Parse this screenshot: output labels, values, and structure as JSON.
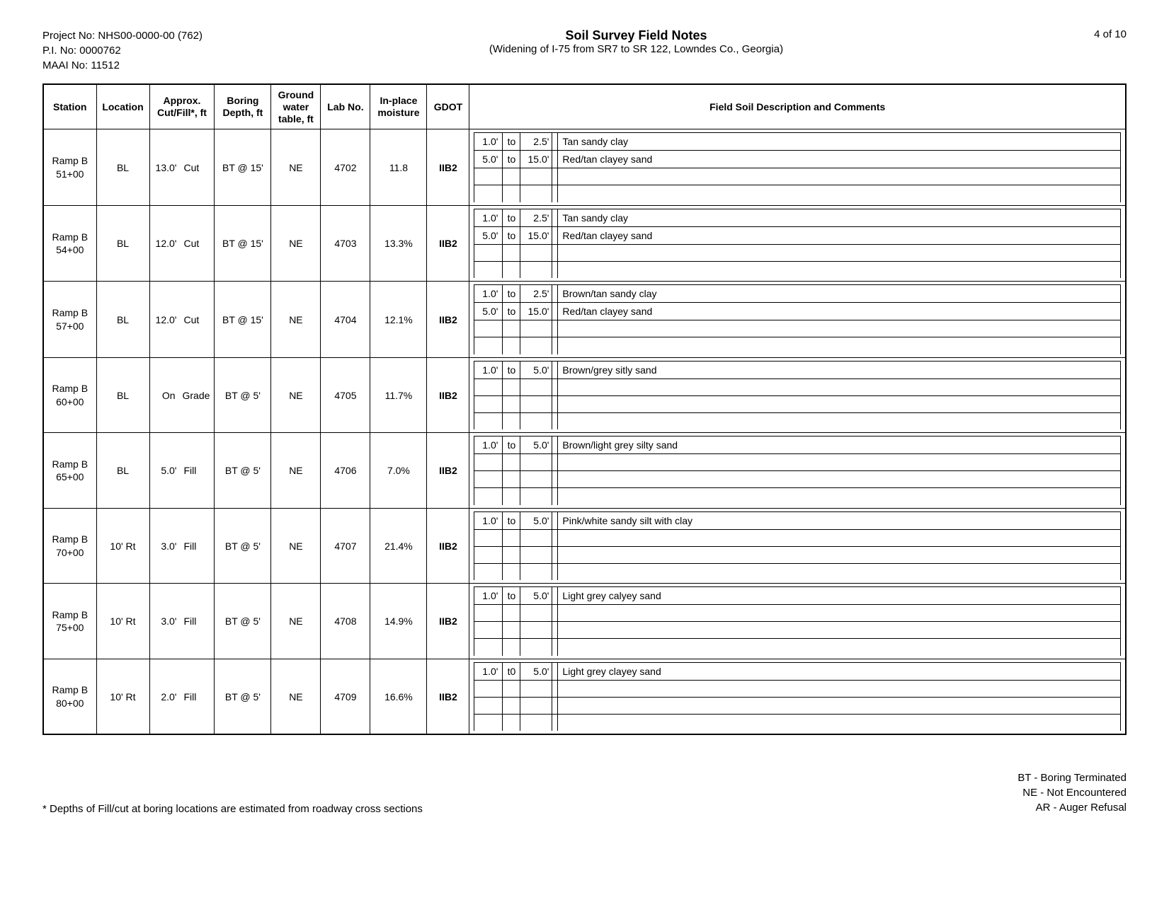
{
  "header": {
    "project_no_label": "Project No:",
    "project_no": "NHS00-0000-00 (762)",
    "pi_no_label": "P.I. No:",
    "pi_no": "0000762",
    "maai_no_label": "MAAI No:",
    "maai_no": "11512",
    "title": "Soil Survey Field Notes",
    "subtitle": "(Widening of I-75 from SR7 to SR 122, Lowndes Co., Georgia)",
    "page": "4 of 10"
  },
  "columns": {
    "station": "Station",
    "location": "Location",
    "cutfill": "Approx. Cut/Fill*, ft",
    "boring": "Boring Depth, ft",
    "gwt": "Ground water table, ft",
    "lab": "Lab No.",
    "moisture": "In-place moisture",
    "gdot": "GDOT",
    "desc": "Field Soil Description and Comments"
  },
  "rows": [
    {
      "station": "Ramp B 51+00",
      "location": "BL",
      "cut_val": "13.0'",
      "cut_type": "Cut",
      "boring": "BT @ 15'",
      "gwt": "NE",
      "lab": "4702",
      "moisture": "11.8",
      "gdot": "IIB2",
      "layers": [
        {
          "from": "1.0'",
          "tolbl": "to",
          "to": "2.5'",
          "text": "Tan sandy clay"
        },
        {
          "from": "5.0'",
          "tolbl": "to",
          "to": "15.0'",
          "text": "Red/tan clayey sand"
        },
        {
          "from": "",
          "tolbl": "",
          "to": "",
          "text": ""
        },
        {
          "from": "",
          "tolbl": "",
          "to": "",
          "text": ""
        }
      ]
    },
    {
      "station": "Ramp B 54+00",
      "location": "BL",
      "cut_val": "12.0'",
      "cut_type": "Cut",
      "boring": "BT @ 15'",
      "gwt": "NE",
      "lab": "4703",
      "moisture": "13.3%",
      "gdot": "IIB2",
      "layers": [
        {
          "from": "1.0'",
          "tolbl": "to",
          "to": "2.5'",
          "text": "Tan sandy clay"
        },
        {
          "from": "5.0'",
          "tolbl": "to",
          "to": "15.0'",
          "text": "Red/tan clayey sand"
        },
        {
          "from": "",
          "tolbl": "",
          "to": "",
          "text": ""
        },
        {
          "from": "",
          "tolbl": "",
          "to": "",
          "text": ""
        }
      ]
    },
    {
      "station": "Ramp B 57+00",
      "location": "BL",
      "cut_val": "12.0'",
      "cut_type": "Cut",
      "boring": "BT @ 15'",
      "gwt": "NE",
      "lab": "4704",
      "moisture": "12.1%",
      "gdot": "IIB2",
      "layers": [
        {
          "from": "1.0'",
          "tolbl": "to",
          "to": "2.5'",
          "text": "Brown/tan sandy clay"
        },
        {
          "from": "5.0'",
          "tolbl": "to",
          "to": "15.0'",
          "text": "Red/tan clayey sand"
        },
        {
          "from": "",
          "tolbl": "",
          "to": "",
          "text": ""
        },
        {
          "from": "",
          "tolbl": "",
          "to": "",
          "text": ""
        }
      ]
    },
    {
      "station": "Ramp B 60+00",
      "location": "BL",
      "cut_val": "On",
      "cut_type": "Grade",
      "boring": "BT @ 5'",
      "gwt": "NE",
      "lab": "4705",
      "moisture": "11.7%",
      "gdot": "IIB2",
      "layers": [
        {
          "from": "1.0'",
          "tolbl": "to",
          "to": "5.0'",
          "text": "Brown/grey sitly sand"
        },
        {
          "from": "",
          "tolbl": "",
          "to": "",
          "text": ""
        },
        {
          "from": "",
          "tolbl": "",
          "to": "",
          "text": ""
        },
        {
          "from": "",
          "tolbl": "",
          "to": "",
          "text": ""
        }
      ]
    },
    {
      "station": "Ramp B 65+00",
      "location": "BL",
      "cut_val": "5.0'",
      "cut_type": "Fill",
      "boring": "BT @ 5'",
      "gwt": "NE",
      "lab": "4706",
      "moisture": "7.0%",
      "gdot": "IIB2",
      "layers": [
        {
          "from": "1.0'",
          "tolbl": "to",
          "to": "5.0'",
          "text": "Brown/light grey silty sand"
        },
        {
          "from": "",
          "tolbl": "",
          "to": "",
          "text": ""
        },
        {
          "from": "",
          "tolbl": "",
          "to": "",
          "text": ""
        },
        {
          "from": "",
          "tolbl": "",
          "to": "",
          "text": ""
        }
      ]
    },
    {
      "station": "Ramp B 70+00",
      "location": "10' Rt",
      "cut_val": "3.0'",
      "cut_type": "Fill",
      "boring": "BT @ 5'",
      "gwt": "NE",
      "lab": "4707",
      "moisture": "21.4%",
      "gdot": "IIB2",
      "layers": [
        {
          "from": "1.0'",
          "tolbl": "to",
          "to": "5.0'",
          "text": "Pink/white sandy silt with clay"
        },
        {
          "from": "",
          "tolbl": "",
          "to": "",
          "text": ""
        },
        {
          "from": "",
          "tolbl": "",
          "to": "",
          "text": ""
        },
        {
          "from": "",
          "tolbl": "",
          "to": "",
          "text": ""
        }
      ]
    },
    {
      "station": "Ramp B 75+00",
      "location": "10' Rt",
      "cut_val": "3.0'",
      "cut_type": "Fill",
      "boring": "BT @ 5'",
      "gwt": "NE",
      "lab": "4708",
      "moisture": "14.9%",
      "gdot": "IIB2",
      "layers": [
        {
          "from": "1.0'",
          "tolbl": "to",
          "to": "5.0'",
          "text": "Light grey calyey sand"
        },
        {
          "from": "",
          "tolbl": "",
          "to": "",
          "text": ""
        },
        {
          "from": "",
          "tolbl": "",
          "to": "",
          "text": ""
        },
        {
          "from": "",
          "tolbl": "",
          "to": "",
          "text": ""
        }
      ]
    },
    {
      "station": "Ramp B 80+00",
      "location": "10' Rt",
      "cut_val": "2.0'",
      "cut_type": "Fill",
      "boring": "BT @ 5'",
      "gwt": "NE",
      "lab": "4709",
      "moisture": "16.6%",
      "gdot": "IIB2",
      "layers": [
        {
          "from": "1.0'",
          "tolbl": "t0",
          "to": "5.0'",
          "text": "Light grey clayey sand"
        },
        {
          "from": "",
          "tolbl": "",
          "to": "",
          "text": ""
        },
        {
          "from": "",
          "tolbl": "",
          "to": "",
          "text": ""
        },
        {
          "from": "",
          "tolbl": "",
          "to": "",
          "text": ""
        }
      ]
    }
  ],
  "footer": {
    "note": "* Depths of Fill/cut at boring locations are estimated from roadway cross sections",
    "legend1": "BT - Boring Terminated",
    "legend2": "NE - Not Encountered",
    "legend3": "AR - Auger Refusal"
  }
}
